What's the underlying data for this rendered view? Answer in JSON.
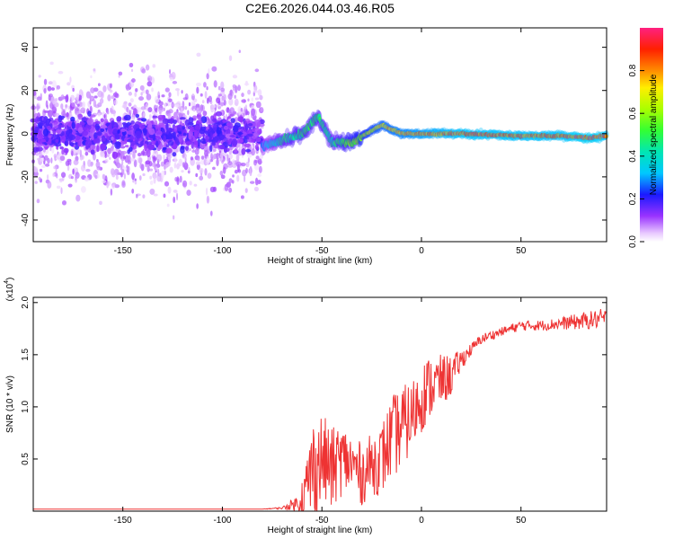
{
  "title": "C2E6.2026.044.03.46.R05",
  "chart_data": [
    {
      "type": "heatmap",
      "name": "spectrogram",
      "xlabel": "Height of straight line (km)",
      "ylabel": "Frequency (Hz)",
      "xlim": [
        -195,
        93
      ],
      "ylim": [
        -50,
        49
      ],
      "xticks": [
        -150,
        -100,
        -50,
        0,
        50
      ],
      "yticks": [
        -40,
        -20,
        0,
        20,
        40
      ],
      "colorbar": {
        "label": "Normalized spectral amplitude",
        "range": [
          0,
          1
        ],
        "ticks": [
          "0.0",
          "0.2",
          "0.4",
          "0.6",
          "0.8"
        ],
        "tick_values": [
          0.0,
          0.2,
          0.4,
          0.6,
          0.8
        ]
      },
      "features": {
        "noise_band": {
          "x_from": -195,
          "x_to": -80,
          "center_hz": 0,
          "spread_hz": 10,
          "amplitude": 0.15
        },
        "ridge": [
          {
            "x": -80,
            "f": -6,
            "amp": 0.3
          },
          {
            "x": -70,
            "f": -3,
            "amp": 0.45
          },
          {
            "x": -60,
            "f": 0,
            "amp": 0.5
          },
          {
            "x": -52,
            "f": 8,
            "amp": 0.5
          },
          {
            "x": -45,
            "f": -4,
            "amp": 0.45
          },
          {
            "x": -35,
            "f": -4,
            "amp": 0.6
          },
          {
            "x": -20,
            "f": 4,
            "amp": 0.75
          },
          {
            "x": -10,
            "f": 0,
            "amp": 0.8
          },
          {
            "x": 0,
            "f": 0,
            "amp": 0.85
          },
          {
            "x": 20,
            "f": 0,
            "amp": 0.9
          },
          {
            "x": 50,
            "f": -1,
            "amp": 0.9
          },
          {
            "x": 70,
            "f": -1,
            "amp": 0.9
          },
          {
            "x": 85,
            "f": -2,
            "amp": 0.95
          },
          {
            "x": 93,
            "f": -1,
            "amp": 0.9
          }
        ]
      }
    },
    {
      "type": "line",
      "name": "snr",
      "xlabel": "Height of straight line (km)",
      "ylabel": "SNR (10 * v/v)",
      "yscale_label": "(x10^4)",
      "yscale_base": "(x10",
      "yscale_exp": "4",
      "xlim": [
        -195,
        93
      ],
      "ylim": [
        0,
        2.05
      ],
      "xticks": [
        -150,
        -100,
        -50,
        0,
        50
      ],
      "yticks": [
        0.5,
        1.0,
        1.5,
        2.0
      ],
      "ytick_labels": [
        "0.5",
        "1.0",
        "1.5",
        "2.0"
      ],
      "series": [
        {
          "name": "SNR",
          "color": "#ee3333",
          "x": [
            -195,
            -150,
            -100,
            -80,
            -70,
            -62,
            -58,
            -55,
            -50,
            -45,
            -40,
            -35,
            -30,
            -25,
            -20,
            -15,
            -10,
            -5,
            0,
            5,
            10,
            15,
            20,
            25,
            30,
            40,
            50,
            60,
            70,
            80,
            93
          ],
          "y": [
            0.02,
            0.02,
            0.02,
            0.02,
            0.03,
            0.08,
            0.2,
            0.4,
            0.5,
            0.4,
            0.5,
            0.45,
            0.35,
            0.45,
            0.5,
            0.7,
            0.8,
            0.9,
            1.1,
            1.2,
            1.25,
            1.3,
            1.45,
            1.55,
            1.65,
            1.72,
            1.78,
            1.78,
            1.8,
            1.82,
            1.85
          ],
          "noise": [
            0.0,
            0.0,
            0.0,
            0.0,
            0.01,
            0.08,
            0.3,
            0.5,
            0.45,
            0.4,
            0.35,
            0.3,
            0.3,
            0.3,
            0.35,
            0.4,
            0.4,
            0.35,
            0.35,
            0.3,
            0.25,
            0.2,
            0.1,
            0.06,
            0.05,
            0.04,
            0.05,
            0.05,
            0.06,
            0.08,
            0.1
          ]
        }
      ]
    }
  ]
}
